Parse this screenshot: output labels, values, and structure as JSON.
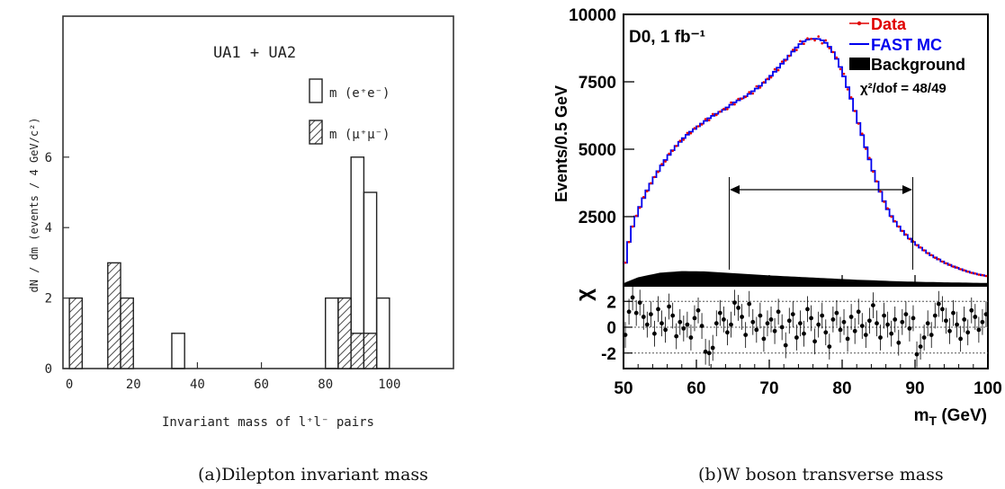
{
  "chart_data": [
    {
      "type": "bar",
      "title": "UA1 + UA2",
      "xlabel": "Invariant mass of l⁺l⁻ pairs",
      "ylabel": "dN / dm (events / 4 GeV/c²)",
      "xlim": [
        -2,
        120
      ],
      "ylim": [
        0,
        10
      ],
      "x_ticks": [
        "0",
        "20",
        "40",
        "60",
        "80",
        "100"
      ],
      "y_ticks": [
        "0",
        "2",
        "4",
        "6"
      ],
      "bin_width": 4,
      "legend": [
        "m (e⁺e⁻)",
        "m (μ⁺μ⁻)"
      ],
      "legend_position": "top-right",
      "series": [
        {
          "name": "m (e⁺e⁻)",
          "style": "open",
          "bins": [
            [
              32,
              1
            ],
            [
              80,
              2
            ],
            [
              84,
              2
            ],
            [
              88,
              6
            ],
            [
              92,
              5
            ],
            [
              96,
              2
            ]
          ]
        },
        {
          "name": "m (μ⁺μ⁻)",
          "style": "hatched",
          "bins": [
            [
              0,
              2
            ],
            [
              12,
              3
            ],
            [
              16,
              2
            ],
            [
              84,
              2
            ],
            [
              88,
              1
            ],
            [
              92,
              1
            ]
          ]
        }
      ],
      "caption": "(a)Dilepton invariant mass"
    },
    {
      "type": "line",
      "annotation": "D0, 1 fb⁻¹",
      "chi2_text": "χ²/dof = 48/49",
      "xlabel": "m_T (GeV)",
      "ylabel": "Events/0.5 GeV",
      "xlim": [
        50,
        100
      ],
      "ylim": [
        0,
        10000
      ],
      "x_ticks": [
        "50",
        "60",
        "70",
        "80",
        "90",
        "100"
      ],
      "y_ticks": [
        "2500",
        "5000",
        "7500",
        "10000"
      ],
      "legend": [
        "Data",
        "FAST MC",
        "Background"
      ],
      "legend_position": "top-right",
      "colors": {
        "data": "#e00000",
        "mc": "#0000ee",
        "background": "#000000"
      },
      "fit_range": [
        65,
        90
      ],
      "mc_curve": [
        [
          50,
          400
        ],
        [
          51,
          1950
        ],
        [
          52,
          2700
        ],
        [
          53,
          3350
        ],
        [
          54,
          3850
        ],
        [
          55,
          4300
        ],
        [
          56,
          4700
        ],
        [
          57,
          5050
        ],
        [
          58,
          5350
        ],
        [
          59,
          5600
        ],
        [
          60,
          5800
        ],
        [
          61,
          6000
        ],
        [
          62,
          6200
        ],
        [
          63,
          6350
        ],
        [
          64,
          6500
        ],
        [
          65,
          6700
        ],
        [
          66,
          6850
        ],
        [
          67,
          7000
        ],
        [
          68,
          7200
        ],
        [
          69,
          7400
        ],
        [
          70,
          7650
        ],
        [
          71,
          7950
        ],
        [
          72,
          8250
        ],
        [
          73,
          8550
        ],
        [
          74,
          8850
        ],
        [
          75,
          9050
        ],
        [
          76,
          9100
        ],
        [
          77,
          9080
        ],
        [
          78,
          8900
        ],
        [
          79,
          8500
        ],
        [
          80,
          7900
        ],
        [
          81,
          7100
        ],
        [
          82,
          6200
        ],
        [
          83,
          5300
        ],
        [
          84,
          4400
        ],
        [
          85,
          3600
        ],
        [
          86,
          2900
        ],
        [
          87,
          2400
        ],
        [
          88,
          2050
        ],
        [
          89,
          1750
        ],
        [
          90,
          1500
        ],
        [
          91,
          1300
        ],
        [
          92,
          1100
        ],
        [
          93,
          950
        ],
        [
          94,
          800
        ],
        [
          95,
          680
        ],
        [
          96,
          580
        ],
        [
          97,
          480
        ],
        [
          98,
          400
        ],
        [
          99,
          340
        ],
        [
          100,
          290
        ]
      ],
      "background_curve": [
        [
          50,
          30
        ],
        [
          52,
          250
        ],
        [
          55,
          420
        ],
        [
          58,
          480
        ],
        [
          61,
          470
        ],
        [
          64,
          420
        ],
        [
          67,
          370
        ],
        [
          70,
          320
        ],
        [
          73,
          280
        ],
        [
          76,
          240
        ],
        [
          79,
          200
        ],
        [
          82,
          160
        ],
        [
          85,
          130
        ],
        [
          88,
          100
        ],
        [
          91,
          80
        ],
        [
          95,
          60
        ],
        [
          100,
          40
        ]
      ],
      "residual_panel": {
        "ylabel": "χ",
        "ylim": [
          -3.2,
          3.2
        ],
        "y_ticks": [
          "2",
          "0",
          "-2"
        ],
        "reference_lines": [
          2,
          0,
          -2
        ],
        "points": [
          -0.6,
          1.2,
          2.3,
          1.1,
          1.9,
          0.8,
          0.2,
          1.0,
          -0.5,
          1.4,
          0.3,
          -0.2,
          1.6,
          0.9,
          -0.7,
          0.4,
          -0.1,
          0.2,
          -0.8,
          0.7,
          1.3,
          0.1,
          -1.9,
          -2.0,
          -1.6,
          0.3,
          1.1,
          0.6,
          -0.4,
          0.2,
          1.9,
          1.5,
          0.8,
          -0.6,
          1.8,
          0.4,
          -0.2,
          0.9,
          -0.9,
          0.3,
          0.6,
          -0.3,
          1.2,
          0.0,
          -1.4,
          0.5,
          1.0,
          -0.8,
          0.3,
          -0.5,
          1.4,
          0.7,
          -1.1,
          0.2,
          0.9,
          -0.4,
          -1.5,
          0.6,
          1.1,
          -0.2,
          0.4,
          -0.9,
          0.8,
          -0.3,
          1.2,
          0.1,
          -0.6,
          0.5,
          1.7,
          0.3,
          -0.8,
          0.9,
          0.2,
          -0.5,
          0.6,
          -1.2,
          0.4,
          1.0,
          -0.1,
          0.7,
          -2.1,
          -1.5,
          -0.8,
          0.3,
          -0.6,
          0.9,
          1.8,
          1.4,
          0.5,
          -0.3,
          1.1,
          0.2,
          -0.9,
          0.6,
          -0.4,
          1.3,
          0.8,
          -0.2,
          0.4,
          1.0
        ]
      },
      "caption": "(b)W boson transverse mass"
    }
  ]
}
